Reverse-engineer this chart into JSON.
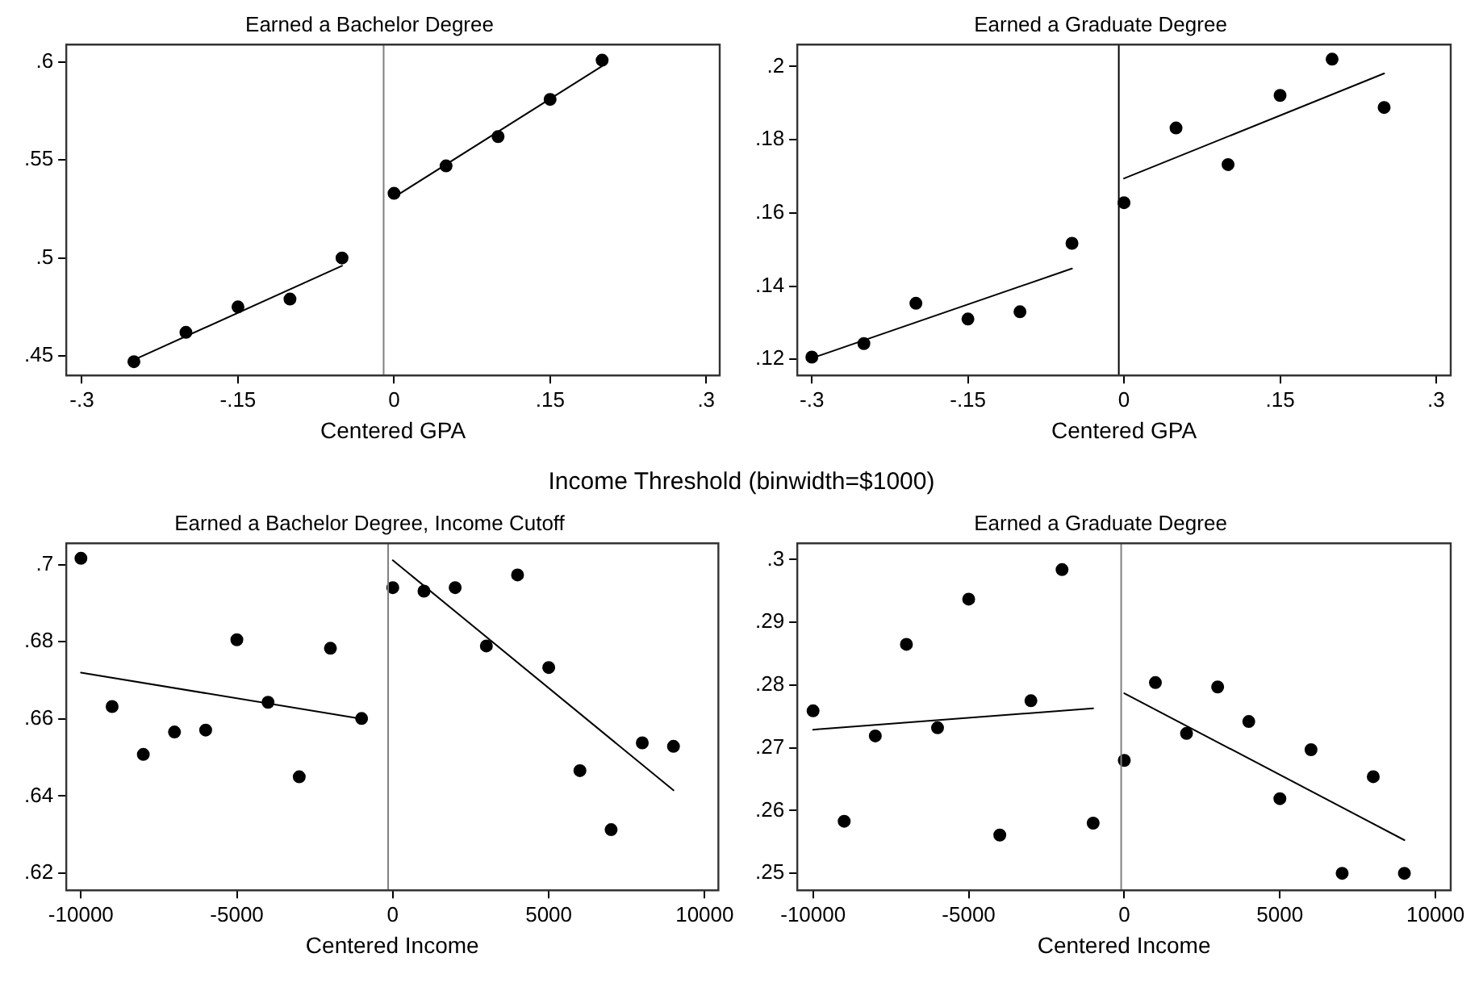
{
  "chart_data": [
    {
      "type": "scatter",
      "title": "Earned a Bachelor Degree",
      "xlabel": "Centered GPA",
      "xlim": [
        -0.315,
        0.313
      ],
      "xticks": [
        {
          "value": -0.3,
          "label": "-.3"
        },
        {
          "value": -0.15,
          "label": "-.15"
        },
        0,
        {
          "value": 0.15,
          "label": ".15"
        },
        {
          "value": 0.3,
          "label": ".3"
        }
      ],
      "ylim": [
        0.44,
        0.609
      ],
      "yticks": [
        {
          "value": 0.45,
          "label": ".45"
        },
        {
          "value": 0.5,
          "label": ".5"
        },
        {
          "value": 0.55,
          "label": ".55"
        },
        {
          "value": 0.6,
          "label": ".6"
        }
      ],
      "grid": false,
      "ref_lines": [
        {
          "axis": "x",
          "value": -0.01,
          "color": "#808080"
        }
      ],
      "series": [
        {
          "type": "scatter",
          "marker": "circle",
          "color": "#000000",
          "x": [
            -0.25,
            -0.2,
            -0.15,
            -0.1,
            -0.05,
            0,
            0.05,
            0.1,
            0.15,
            0.2
          ],
          "values": [
            0.447,
            0.462,
            0.475,
            0.479,
            0.5,
            0.533,
            0.547,
            0.562,
            0.581,
            0.601
          ]
        },
        {
          "type": "line",
          "marker": "none",
          "color": "#000000",
          "x": [
            -0.25,
            -0.05
          ],
          "values": [
            0.448,
            0.496
          ]
        },
        {
          "type": "line",
          "marker": "none",
          "color": "#000000",
          "x": [
            0,
            0.2
          ],
          "values": [
            0.531,
            0.598
          ]
        }
      ]
    },
    {
      "type": "scatter",
      "title": "Earned a Graduate Degree",
      "xlabel": "Centered GPA",
      "xlim": [
        -0.314,
        0.314
      ],
      "xticks": [
        {
          "value": -0.3,
          "label": "-.3"
        },
        {
          "value": -0.15,
          "label": "-.15"
        },
        0,
        {
          "value": 0.15,
          "label": ".15"
        },
        {
          "value": 0.3,
          "label": ".3"
        }
      ],
      "ylim": [
        0.1156,
        0.206
      ],
      "yticks": [
        {
          "value": 0.12,
          "label": ".12"
        },
        {
          "value": 0.14,
          "label": ".14"
        },
        {
          "value": 0.16,
          "label": ".16"
        },
        {
          "value": 0.18,
          "label": ".18"
        },
        {
          "value": 0.2,
          "label": ".2"
        }
      ],
      "grid": false,
      "ref_lines": [
        {
          "axis": "x",
          "value": -0.005,
          "color": "#000000"
        }
      ],
      "series": [
        {
          "type": "scatter",
          "marker": "circle",
          "color": "#000000",
          "x": [
            -0.3,
            -0.25,
            -0.2,
            -0.15,
            -0.1,
            -0.05,
            0,
            0.05,
            0.1,
            0.15,
            0.2,
            0.25
          ],
          "values": [
            0.1206,
            0.1243,
            0.1353,
            0.131,
            0.133,
            0.1517,
            0.1628,
            0.1832,
            0.1732,
            0.1921,
            0.202,
            0.1888
          ]
        },
        {
          "type": "line",
          "marker": "none",
          "color": "#000000",
          "x": [
            -0.3,
            -0.05
          ],
          "values": [
            0.1203,
            0.1448
          ]
        },
        {
          "type": "line",
          "marker": "none",
          "color": "#000000",
          "x": [
            0,
            0.25
          ],
          "values": [
            0.1694,
            0.1981
          ]
        }
      ]
    },
    {
      "type": "scatter",
      "title": "Earned a Bachelor Degree, Income Cutoff",
      "annotations": [
        "Income Threshold (binwidth=$1000)"
      ],
      "xlabel": "Centered Income",
      "xlim": [
        -10470,
        10440
      ],
      "xticks": [
        -10000,
        -5000,
        0,
        5000,
        10000
      ],
      "ylim": [
        0.6156,
        0.7055
      ],
      "yticks": [
        {
          "value": 0.62,
          "label": ".62"
        },
        {
          "value": 0.64,
          "label": ".64"
        },
        {
          "value": 0.66,
          "label": ".66"
        },
        {
          "value": 0.68,
          "label": ".68"
        },
        {
          "value": 0.7,
          "label": ".7"
        }
      ],
      "grid": false,
      "ref_lines": [
        {
          "axis": "x",
          "value": -150,
          "color": "#808080"
        }
      ],
      "series": [
        {
          "type": "scatter",
          "marker": "circle",
          "color": "#000000",
          "x": [
            -10000,
            -9000,
            -8000,
            -7000,
            -6000,
            -5000,
            -4000,
            -3000,
            -2000,
            -1000,
            0,
            1000,
            2000,
            3000,
            4000,
            5000,
            6000,
            7000,
            8000,
            9000
          ],
          "values": [
            0.7016,
            0.6632,
            0.6508,
            0.6566,
            0.6571,
            0.6805,
            0.6643,
            0.645,
            0.6783,
            0.6601,
            0.694,
            0.6931,
            0.694,
            0.6789,
            0.6973,
            0.6733,
            0.6466,
            0.6313,
            0.6538,
            0.6529
          ]
        },
        {
          "type": "line",
          "marker": "none",
          "color": "#000000",
          "x": [
            -10000,
            -1000
          ],
          "values": [
            0.672,
            0.66
          ]
        },
        {
          "type": "line",
          "marker": "none",
          "color": "#000000",
          "x": [
            0,
            9000
          ],
          "values": [
            0.7011,
            0.6415
          ]
        }
      ]
    },
    {
      "type": "scatter",
      "title": "Earned a Graduate Degree",
      "xlabel": "Centered Income",
      "xlim": [
        -10507,
        10489
      ],
      "xticks": [
        -10000,
        -5000,
        0,
        5000,
        10000
      ],
      "ylim": [
        0.2473,
        0.3026
      ],
      "yticks": [
        {
          "value": 0.25,
          "label": ".25"
        },
        {
          "value": 0.26,
          "label": ".26"
        },
        {
          "value": 0.27,
          "label": ".27"
        },
        {
          "value": 0.28,
          "label": ".28"
        },
        {
          "value": 0.29,
          "label": ".29"
        },
        {
          "value": 0.3,
          "label": ".3"
        }
      ],
      "grid": false,
      "ref_lines": [
        {
          "axis": "x",
          "value": -100,
          "color": "#808080"
        }
      ],
      "series": [
        {
          "type": "scatter",
          "marker": "circle",
          "color": "#000000",
          "x": [
            -10000,
            -9000,
            -8000,
            -7000,
            -6000,
            -5000,
            -4000,
            -3000,
            -2000,
            -1000,
            0,
            1000,
            2000,
            3000,
            4000,
            5000,
            6000,
            7000,
            8000,
            9000
          ],
          "values": [
            0.2759,
            0.2583,
            0.2719,
            0.2865,
            0.2732,
            0.2937,
            0.2561,
            0.2775,
            0.2984,
            0.258,
            0.268,
            0.2804,
            0.2723,
            0.2797,
            0.2742,
            0.2619,
            0.2697,
            0.25,
            0.2654,
            0.25
          ]
        },
        {
          "type": "line",
          "marker": "none",
          "color": "#000000",
          "x": [
            -10000,
            -1000
          ],
          "values": [
            0.2729,
            0.2763
          ]
        },
        {
          "type": "line",
          "marker": "none",
          "color": "#000000",
          "x": [
            0,
            9000
          ],
          "values": [
            0.2787,
            0.2553
          ]
        }
      ]
    }
  ]
}
